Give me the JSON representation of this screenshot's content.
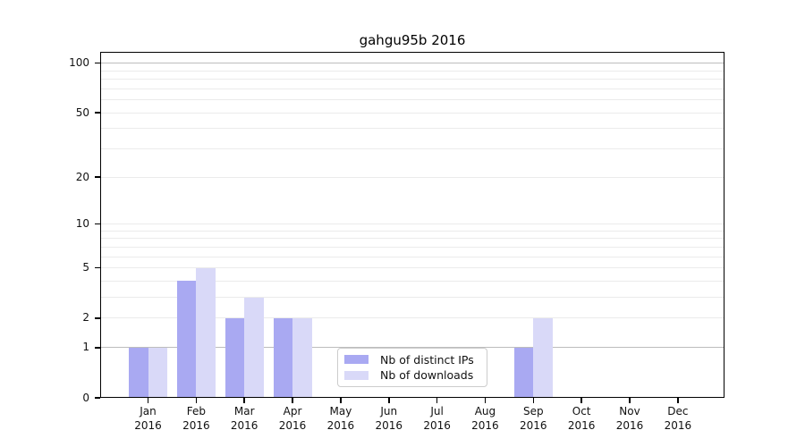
{
  "title": "gahgu95b 2016",
  "legend": {
    "items": [
      {
        "label": "Nb of distinct IPs",
        "color": "#a9a9f2"
      },
      {
        "label": "Nb of downloads",
        "color": "#d9d9f8"
      }
    ]
  },
  "chart_data": {
    "type": "bar",
    "title": "gahgu95b 2016",
    "months": [
      "Jan",
      "Feb",
      "Mar",
      "Apr",
      "May",
      "Jun",
      "Jul",
      "Aug",
      "Sep",
      "Oct",
      "Nov",
      "Dec"
    ],
    "year": "2016",
    "categories": [
      "Jan 2016",
      "Feb 2016",
      "Mar 2016",
      "Apr 2016",
      "May 2016",
      "Jun 2016",
      "Jul 2016",
      "Aug 2016",
      "Sep 2016",
      "Oct 2016",
      "Nov 2016",
      "Dec 2016"
    ],
    "series": [
      {
        "name": "Nb of distinct IPs",
        "color": "#a9a9f2",
        "values": [
          1,
          4,
          2,
          2,
          0,
          0,
          0,
          0,
          1,
          0,
          0,
          0
        ]
      },
      {
        "name": "Nb of downloads",
        "color": "#d9d9f8",
        "values": [
          1,
          5,
          3,
          2,
          0,
          0,
          0,
          0,
          2,
          0,
          0,
          0
        ]
      }
    ],
    "y_axis": {
      "scale": "log10(1+y)",
      "ticks": [
        0,
        1,
        2,
        5,
        10,
        20,
        50,
        100
      ],
      "minor_gridlines": [
        3,
        4,
        6,
        7,
        8,
        9,
        30,
        40,
        60,
        70,
        80,
        90
      ],
      "range": [
        0,
        117
      ]
    },
    "grid": "horizontal",
    "legend_position": "lower-center inside plot",
    "colors": {
      "grid_minor": "#ebebeb",
      "grid_major": "#bdbdbd",
      "axis": "#000000",
      "background": "#ffffff"
    }
  }
}
